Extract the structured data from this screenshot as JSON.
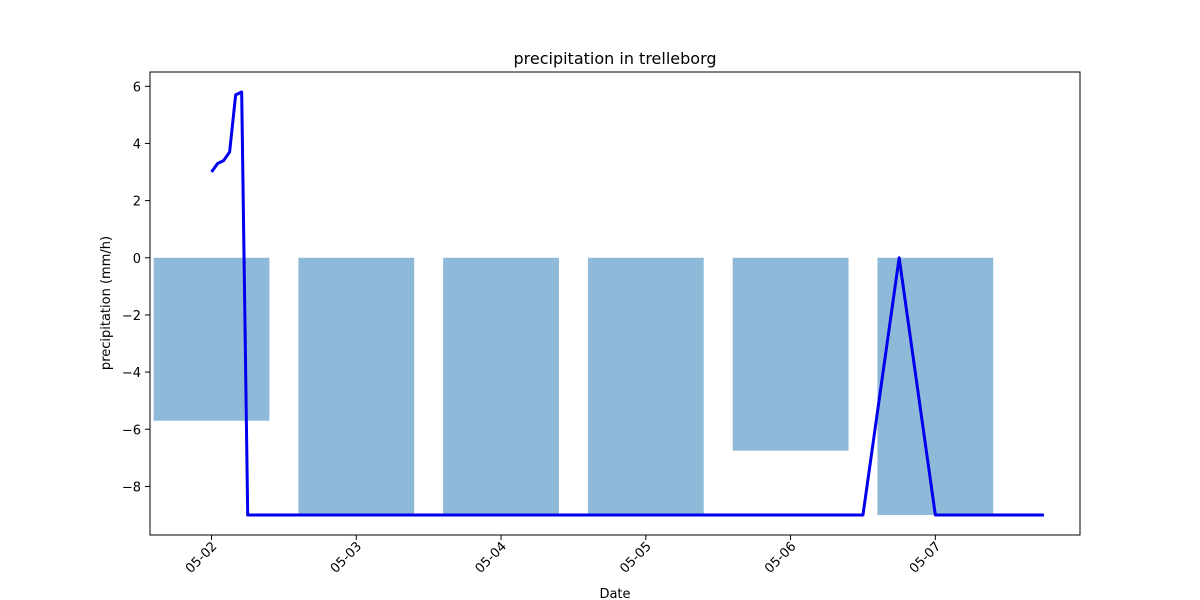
{
  "chart_data": {
    "type": "bar",
    "title": "precipitation in trelleborg",
    "xlabel": "Date",
    "ylabel": "precipitation (mm/h)",
    "ylim": [
      -9.7,
      6.5
    ],
    "yticks": [
      6,
      4,
      2,
      0,
      -2,
      -4,
      -6,
      -8
    ],
    "xlim": [
      "05-01 13:48",
      "05-07 23:59"
    ],
    "x_tick_labels": [
      "05-02",
      "05-03",
      "05-04",
      "05-05",
      "05-06",
      "05-07"
    ],
    "grid": false,
    "bar_series": {
      "categories": [
        "05-02",
        "05-03",
        "05-04",
        "05-05",
        "05-06",
        "05-07"
      ],
      "values": [
        -5.7,
        -9.0,
        -9.0,
        -9.0,
        -6.75,
        -9.0
      ],
      "color": "#8fb9d9"
    },
    "line_series": {
      "color": "#0000ee",
      "x": [
        "05-02 00:00",
        "05-02 01:00",
        "05-02 02:00",
        "05-02 03:00",
        "05-02 04:00",
        "05-02 05:00",
        "05-02 06:00",
        "05-06 12:00",
        "05-06 18:00",
        "05-07 00:00",
        "05-07 18:00"
      ],
      "y": [
        3.0,
        3.3,
        3.4,
        3.7,
        5.7,
        5.8,
        -9.0,
        -9.0,
        0.0,
        -9.0,
        -9.0
      ]
    }
  }
}
